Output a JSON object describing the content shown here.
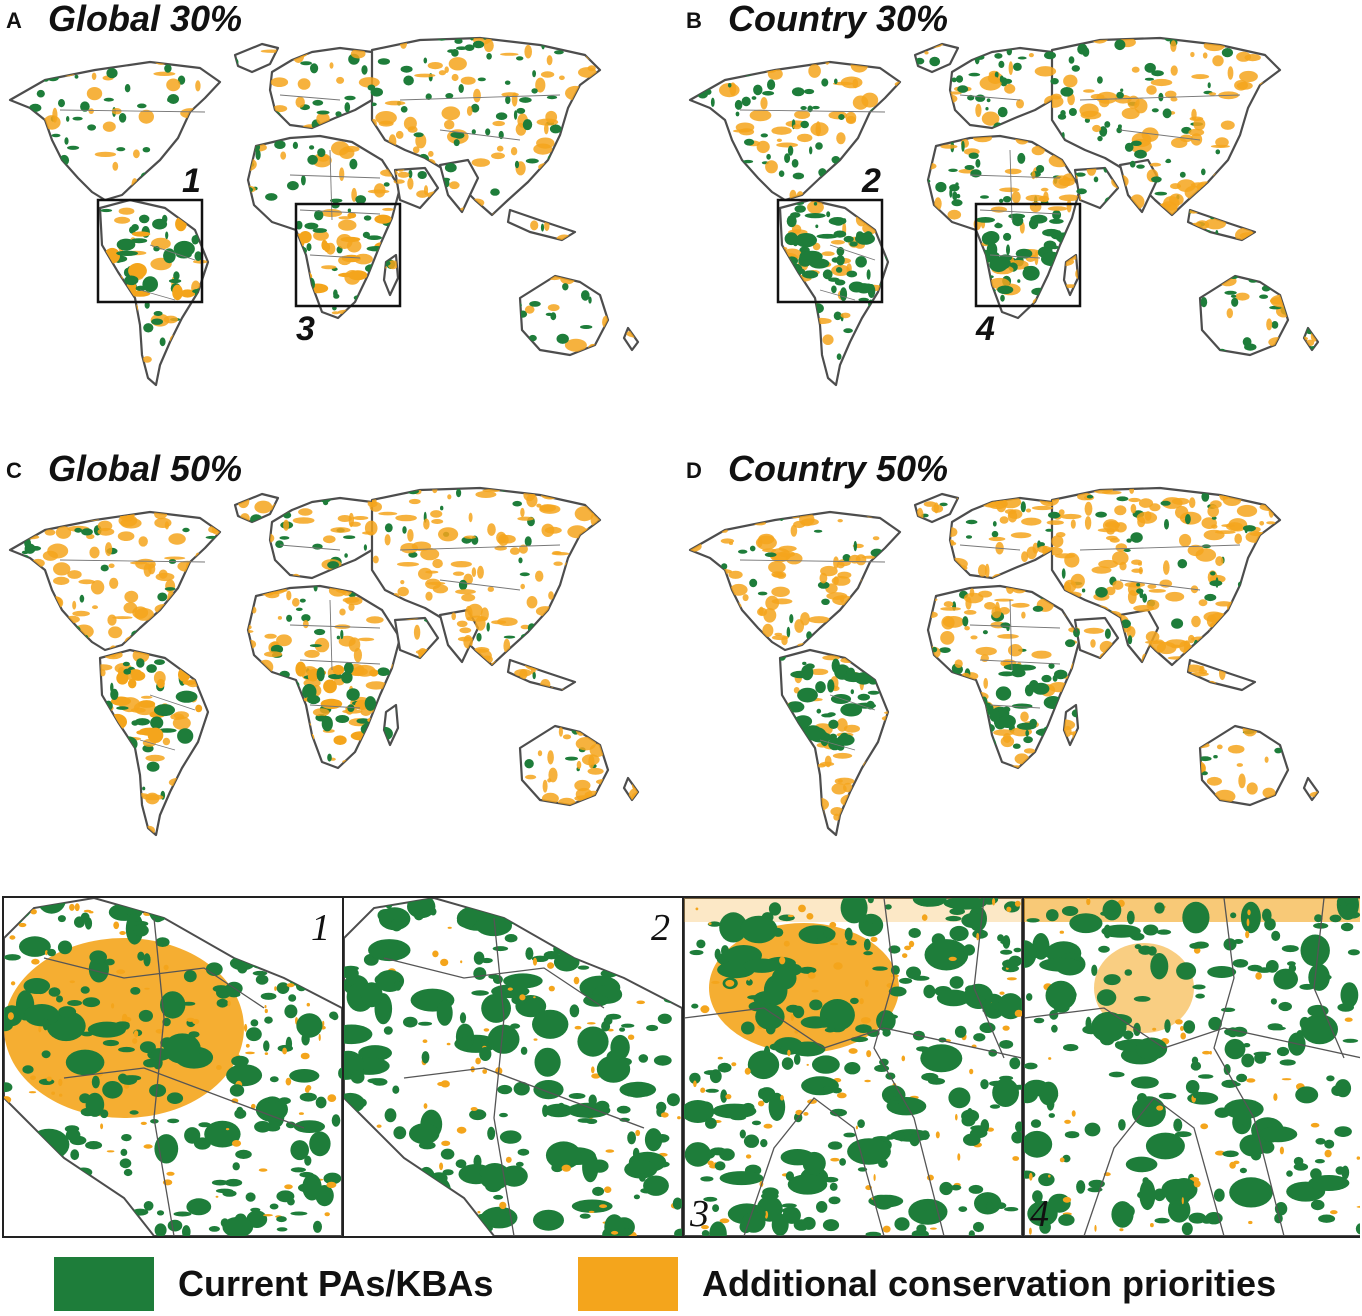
{
  "panels": [
    {
      "letter": "A",
      "title": "Global 30%",
      "variant": "g30",
      "insets": [
        {
          "label": "1",
          "region": "sam"
        },
        {
          "label": "3",
          "region": "afr"
        }
      ]
    },
    {
      "letter": "B",
      "title": "Country 30%",
      "variant": "c30",
      "insets": [
        {
          "label": "2",
          "region": "sam"
        },
        {
          "label": "4",
          "region": "afr"
        }
      ]
    },
    {
      "letter": "C",
      "title": "Global 50%",
      "variant": "g50",
      "insets": []
    },
    {
      "letter": "D",
      "title": "Country 50%",
      "variant": "c50",
      "insets": []
    }
  ],
  "zoom_panels": [
    {
      "label": "1",
      "region": "south-america",
      "scenario": "global-30"
    },
    {
      "label": "2",
      "region": "south-america",
      "scenario": "country-30"
    },
    {
      "label": "3",
      "region": "africa",
      "scenario": "global-30"
    },
    {
      "label": "4",
      "region": "africa",
      "scenario": "country-30"
    }
  ],
  "legend": [
    {
      "label": "Current PAs/KBAs",
      "color": "#1e7d3a"
    },
    {
      "label": "Additional conservation priorities",
      "color": "#f4a51c"
    }
  ],
  "colors": {
    "green": "#1e7d3a",
    "orange": "#f4a51c",
    "outline": "#4d4d4d"
  }
}
